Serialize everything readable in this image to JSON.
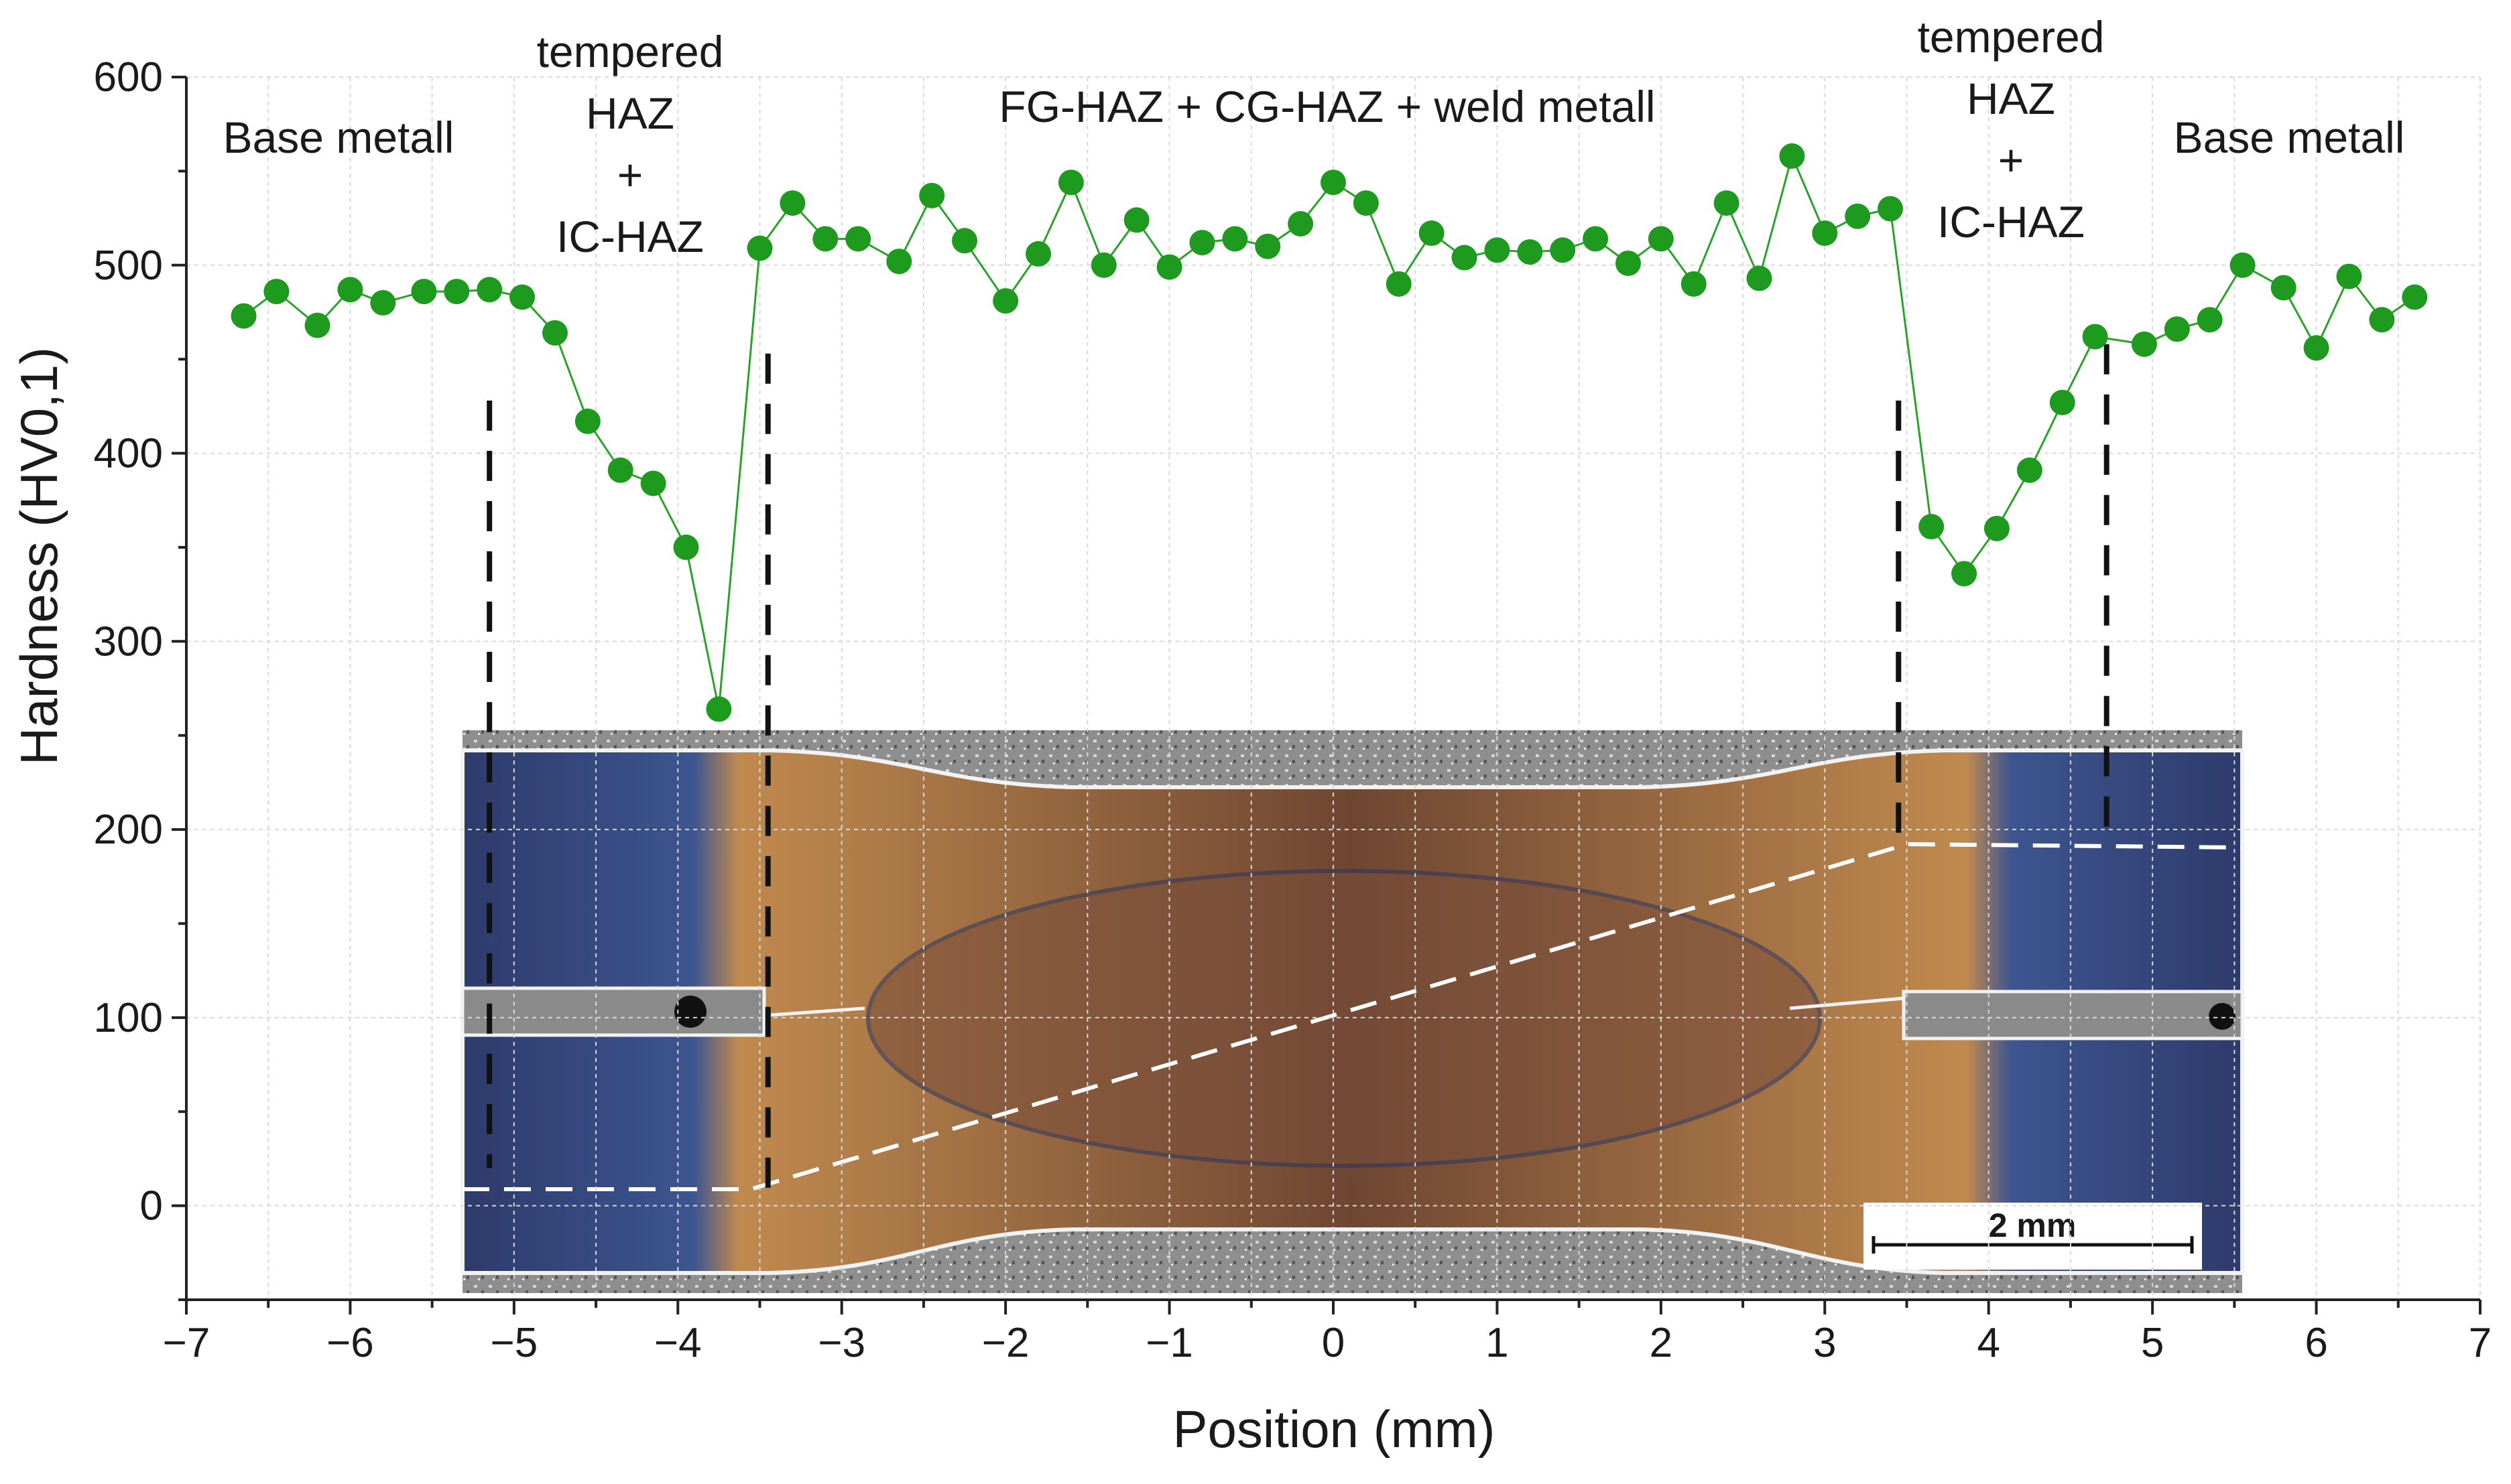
{
  "colors": {
    "marker": "#1e9b1e",
    "line": "#2aa32a",
    "axis": "#222222",
    "grid": "#d9d9d9",
    "boundary": "#111111"
  },
  "chart_data": {
    "type": "scatter",
    "title": "",
    "xlabel": "Position (mm)",
    "ylabel": "Hardness (HV0,1)",
    "xlim": [
      -7,
      7
    ],
    "ylim": [
      -50,
      600
    ],
    "xticks": [
      -7,
      -6,
      -5,
      -4,
      -3,
      -2,
      -1,
      0,
      1,
      2,
      3,
      4,
      5,
      6,
      7
    ],
    "xtick_labels": [
      "−7",
      "−6",
      "−5",
      "−4",
      "−3",
      "−2",
      "−1",
      "0",
      "1",
      "2",
      "3",
      "4",
      "5",
      "6",
      "7"
    ],
    "yticks": [
      0,
      100,
      200,
      300,
      400,
      500,
      600
    ],
    "ytick_labels": [
      "0",
      "100",
      "200",
      "300",
      "400",
      "500",
      "600"
    ],
    "grid": true,
    "series": [
      {
        "name": "Hardness",
        "x": [
          -6.65,
          -6.45,
          -6.2,
          -6.0,
          -5.8,
          -5.55,
          -5.35,
          -5.15,
          -4.95,
          -4.75,
          -4.55,
          -4.35,
          -4.15,
          -3.95,
          -3.75,
          -3.5,
          -3.3,
          -3.1,
          -2.9,
          -2.65,
          -2.45,
          -2.25,
          -2.0,
          -1.8,
          -1.6,
          -1.4,
          -1.2,
          -1.0,
          -0.8,
          -0.6,
          -0.4,
          -0.2,
          0.0,
          0.2,
          0.4,
          0.6,
          0.8,
          1.0,
          1.2,
          1.4,
          1.6,
          1.8,
          2.0,
          2.2,
          2.4,
          2.6,
          2.8,
          3.0,
          3.2,
          3.4,
          3.65,
          3.85,
          4.05,
          4.25,
          4.45,
          4.65,
          4.95,
          5.15,
          5.35,
          5.55,
          5.8,
          6.0,
          6.2,
          6.4,
          6.6
        ],
        "y": [
          473,
          486,
          468,
          487,
          480,
          486,
          486,
          487,
          483,
          464,
          417,
          391,
          384,
          350,
          264,
          509,
          533,
          514,
          514,
          502,
          537,
          513,
          481,
          506,
          544,
          500,
          524,
          499,
          512,
          514,
          510,
          522,
          544,
          533,
          490,
          517,
          504,
          508,
          507,
          508,
          514,
          501,
          514,
          490,
          533,
          493,
          558,
          517,
          526,
          530,
          361,
          336,
          360,
          391,
          427,
          462,
          458,
          466,
          471,
          500,
          488,
          456,
          494,
          471,
          483
        ]
      }
    ],
    "zone_boundaries_mm": [
      -5.15,
      -3.45,
      3.45,
      4.72
    ],
    "annotations": [
      {
        "lines": [
          "Base metall"
        ]
      },
      {
        "lines": [
          "tempered",
          "HAZ",
          "+",
          "IC-HAZ"
        ]
      },
      {
        "lines": [
          "FG-HAZ + CG-HAZ + weld metall"
        ]
      },
      {
        "lines": [
          "tempered",
          "HAZ",
          "+",
          "IC-HAZ"
        ]
      },
      {
        "lines": [
          "Base metall"
        ]
      }
    ],
    "inset": {
      "description": "weld cross-section micrograph",
      "scale_bar_label": "2 mm"
    }
  }
}
